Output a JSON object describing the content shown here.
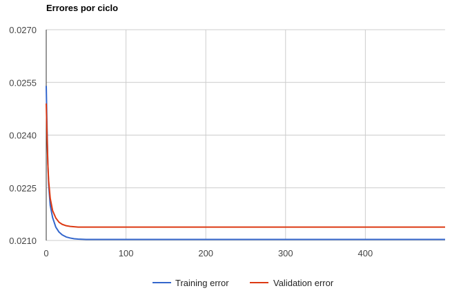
{
  "chart_data": {
    "type": "line",
    "title": "Errores por ciclo",
    "xlim": [
      0,
      500
    ],
    "ylim": [
      0.021,
      0.027
    ],
    "x_ticks": [
      "0",
      "100",
      "200",
      "300",
      "400"
    ],
    "y_ticks": [
      "0.0210",
      "0.0225",
      "0.0240",
      "0.0255",
      "0.0270"
    ],
    "grid": true,
    "legend_position": "bottom",
    "series": [
      {
        "name": "Training error",
        "color": "#3366cc",
        "x": [
          0,
          1,
          2,
          3,
          5,
          8,
          12,
          16,
          20,
          25,
          30,
          35,
          40,
          50,
          60,
          80,
          100,
          200,
          300,
          400,
          500
        ],
        "y": [
          0.0254,
          0.0242,
          0.0232,
          0.0226,
          0.022,
          0.02165,
          0.02138,
          0.02124,
          0.02116,
          0.0211,
          0.02107,
          0.02105,
          0.02104,
          0.02103,
          0.02103,
          0.02103,
          0.02103,
          0.02103,
          0.02103,
          0.02103,
          0.02103
        ]
      },
      {
        "name": "Validation error",
        "color": "#dc3912",
        "x": [
          0,
          1,
          2,
          3,
          5,
          8,
          12,
          16,
          20,
          25,
          30,
          35,
          40,
          50,
          60,
          80,
          100,
          200,
          300,
          400,
          500
        ],
        "y": [
          0.0249,
          0.024,
          0.0232,
          0.0227,
          0.0222,
          0.02185,
          0.02164,
          0.02152,
          0.02146,
          0.02142,
          0.0214,
          0.02139,
          0.02138,
          0.02138,
          0.02138,
          0.02138,
          0.02138,
          0.02138,
          0.02138,
          0.02138,
          0.02138
        ]
      }
    ]
  }
}
